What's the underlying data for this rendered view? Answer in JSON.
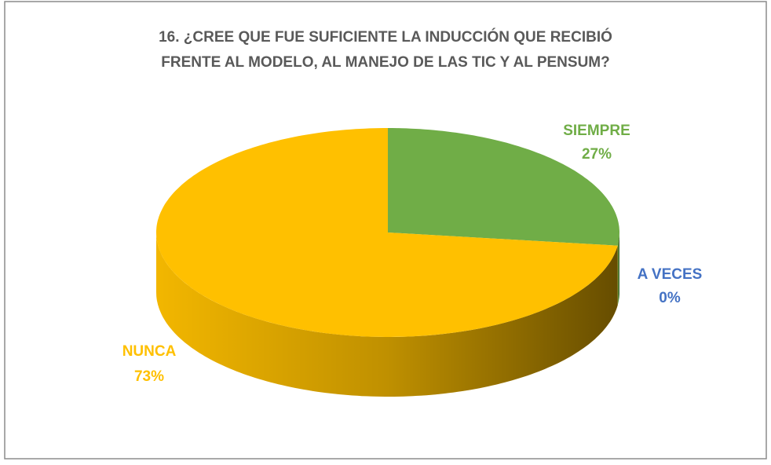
{
  "chart_data": {
    "type": "pie3d",
    "title": [
      "16. ¿CREE QUE FUE SUFICIENTE LA INDUCCIÓN QUE RECIBIÓ",
      "FRENTE AL MODELO, AL MANEJO DE LAS TIC Y AL  PENSUM?"
    ],
    "categories": [
      "SIEMPRE",
      "A VECES",
      "NUNCA"
    ],
    "values": [
      27,
      0,
      73
    ],
    "value_labels": [
      "27%",
      "0%",
      "73%"
    ],
    "colors": [
      "#70ad47",
      "#4472c4",
      "#ffc000"
    ]
  }
}
